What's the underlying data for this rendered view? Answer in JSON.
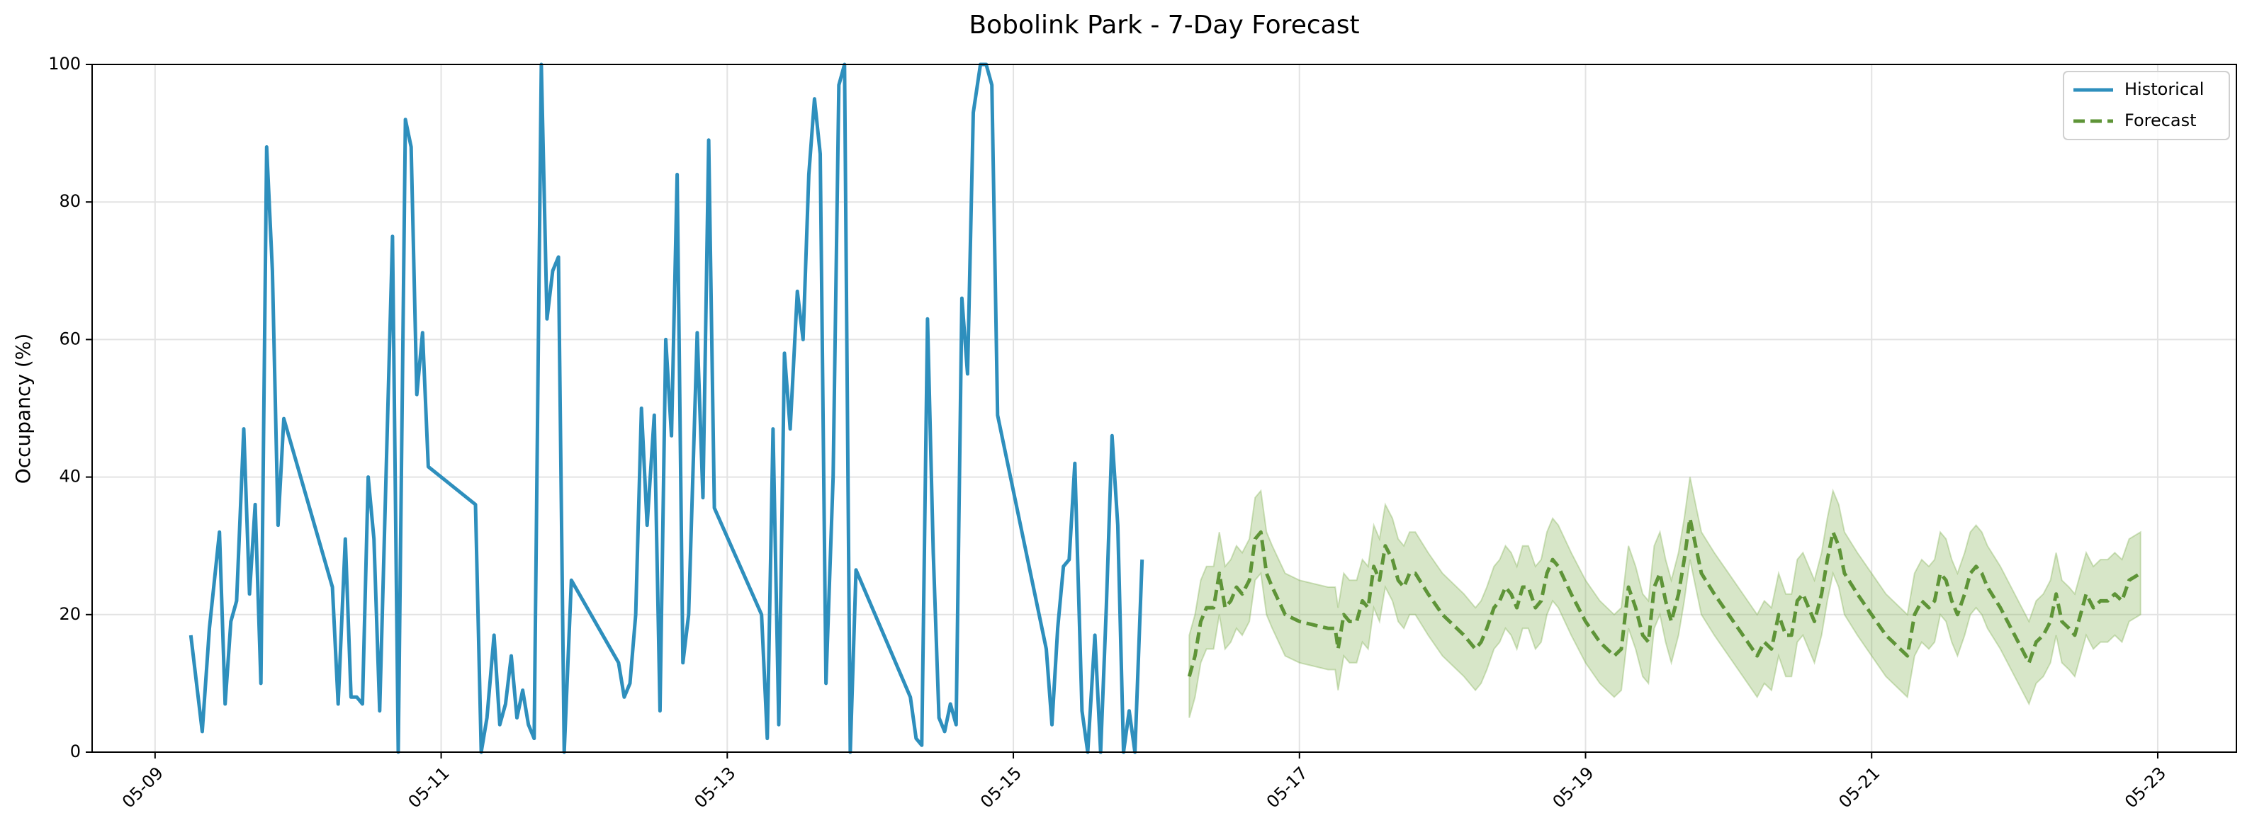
{
  "chart_data": {
    "type": "line",
    "title": "Bobolink Park - 7-Day Forecast",
    "ylabel": "Occupancy (%)",
    "xlim": [
      8.56,
      23.55
    ],
    "ylim": [
      0,
      100
    ],
    "xticks": [
      {
        "value": 9,
        "label": "05-09"
      },
      {
        "value": 11,
        "label": "05-11"
      },
      {
        "value": 13,
        "label": "05-13"
      },
      {
        "value": 15,
        "label": "05-15"
      },
      {
        "value": 17,
        "label": "05-17"
      },
      {
        "value": 19,
        "label": "05-19"
      },
      {
        "value": 21,
        "label": "05-21"
      },
      {
        "value": 23,
        "label": "05-23"
      }
    ],
    "yticks": [
      0,
      20,
      40,
      60,
      80,
      100
    ],
    "grid": true,
    "legend": "upper right",
    "series": [
      {
        "name": "Historical",
        "color": "#2e8fbd",
        "style": "solid",
        "x": [
          9.25,
          9.33,
          9.38,
          9.45,
          9.49,
          9.53,
          9.57,
          9.62,
          9.66,
          9.7,
          9.74,
          9.78,
          9.82,
          9.86,
          9.9,
          10.24,
          10.28,
          10.33,
          10.37,
          10.41,
          10.45,
          10.49,
          10.53,
          10.57,
          10.66,
          10.7,
          10.75,
          10.79,
          10.83,
          10.87,
          10.91,
          11.24,
          11.28,
          11.32,
          11.37,
          11.41,
          11.45,
          11.49,
          11.53,
          11.57,
          11.61,
          11.65,
          11.7,
          11.74,
          11.78,
          11.82,
          11.86,
          11.91,
          12.24,
          12.28,
          12.32,
          12.36,
          12.4,
          12.44,
          12.49,
          12.53,
          12.57,
          12.61,
          12.65,
          12.69,
          12.73,
          12.79,
          12.83,
          12.87,
          12.91,
          13.24,
          13.28,
          13.32,
          13.36,
          13.4,
          13.44,
          13.49,
          13.53,
          13.57,
          13.61,
          13.65,
          13.69,
          13.74,
          13.78,
          13.82,
          13.86,
          13.9,
          14.28,
          14.32,
          14.36,
          14.4,
          14.44,
          14.48,
          14.52,
          14.56,
          14.6,
          14.64,
          14.68,
          14.72,
          14.77,
          14.81,
          14.85,
          14.89,
          15.23,
          15.27,
          15.31,
          15.35,
          15.39,
          15.43,
          15.48,
          15.52,
          15.57,
          15.61,
          15.65,
          15.69,
          15.73,
          15.77,
          15.81,
          15.85,
          15.9
        ],
        "values": [
          17,
          3,
          18,
          32,
          7,
          19,
          22,
          47,
          23,
          36,
          10,
          88,
          70,
          33,
          48.5,
          24,
          7,
          31,
          8,
          8,
          7,
          40,
          31,
          6,
          75,
          0,
          92,
          88,
          52,
          61,
          41.5,
          36,
          0,
          5,
          17,
          4,
          7,
          14,
          5,
          9,
          4,
          2,
          100,
          63,
          70,
          72,
          0,
          25,
          13,
          8,
          10,
          20,
          50,
          33,
          49,
          6,
          60,
          46,
          84,
          13,
          20,
          61,
          37,
          89,
          35.5,
          20,
          2,
          47,
          4,
          58,
          47,
          67,
          60,
          84,
          95,
          87,
          10,
          40,
          97,
          100,
          0,
          26.5,
          8,
          2,
          1,
          63,
          29,
          5,
          3,
          7,
          4,
          66,
          55,
          93,
          100,
          100,
          97,
          49,
          15,
          4,
          18,
          27,
          28,
          42,
          6,
          0,
          17,
          0,
          21,
          46,
          33,
          0,
          6,
          0,
          28
        ]
      },
      {
        "name": "Forecast",
        "color": "#5e9437",
        "style": "dashed",
        "band_color": "#7aab4a",
        "x": [
          16.23,
          16.27,
          16.31,
          16.35,
          16.4,
          16.44,
          16.48,
          16.52,
          16.56,
          16.6,
          16.65,
          16.69,
          16.73,
          16.77,
          16.81,
          16.9,
          17.0,
          17.2,
          17.25,
          17.27,
          17.31,
          17.35,
          17.4,
          17.44,
          17.48,
          17.52,
          17.56,
          17.6,
          17.65,
          17.69,
          17.73,
          17.77,
          17.81,
          17.9,
          18.0,
          18.15,
          18.23,
          18.27,
          18.31,
          18.36,
          18.4,
          18.44,
          18.48,
          18.52,
          18.56,
          18.6,
          18.65,
          18.69,
          18.73,
          18.77,
          18.81,
          18.9,
          19.0,
          19.1,
          19.2,
          19.25,
          19.3,
          19.35,
          19.4,
          19.44,
          19.48,
          19.52,
          19.56,
          19.6,
          19.65,
          19.69,
          19.73,
          19.77,
          19.81,
          19.9,
          20.0,
          20.1,
          20.2,
          20.25,
          20.3,
          20.35,
          20.4,
          20.44,
          20.48,
          20.52,
          20.56,
          20.6,
          20.65,
          20.69,
          20.73,
          20.77,
          20.81,
          20.9,
          21.0,
          21.1,
          21.2,
          21.25,
          21.3,
          21.35,
          21.4,
          21.44,
          21.48,
          21.52,
          21.56,
          21.6,
          21.65,
          21.69,
          21.73,
          21.77,
          21.81,
          21.9,
          22.0,
          22.1,
          22.15,
          22.2,
          22.25,
          22.29,
          22.33,
          22.38,
          22.42,
          22.46,
          22.5,
          22.55,
          22.6,
          22.65,
          22.7,
          22.75,
          22.8,
          22.88
        ],
        "values": [
          11,
          14,
          19,
          21,
          21,
          26,
          21,
          22,
          24,
          23,
          25,
          31,
          32,
          26,
          24,
          20,
          19,
          18,
          18,
          15,
          20,
          19,
          19,
          22,
          21,
          27,
          25,
          30,
          28,
          25,
          24,
          26,
          26,
          23,
          20,
          17,
          15,
          16,
          18,
          21,
          22,
          24,
          23,
          21,
          24,
          24,
          21,
          22,
          26,
          28,
          27,
          23,
          19,
          16,
          14,
          15,
          24,
          21,
          17,
          16,
          24,
          26,
          22,
          19,
          23,
          28,
          34,
          30,
          26,
          23,
          20,
          17,
          14,
          16,
          15,
          20,
          17,
          17,
          22,
          23,
          21,
          19,
          23,
          28,
          32,
          30,
          26,
          23,
          20,
          17,
          15,
          14,
          20,
          22,
          21,
          22,
          26,
          25,
          22,
          20,
          23,
          26,
          27,
          26,
          24,
          21,
          17,
          13,
          16,
          17,
          19,
          23,
          19,
          18,
          17,
          20,
          23,
          21,
          22,
          22,
          23,
          22,
          25,
          26
        ],
        "lower": [
          5,
          8,
          13,
          15,
          15,
          20,
          15,
          16,
          18,
          17,
          19,
          25,
          26,
          20,
          18,
          14,
          13,
          12,
          12,
          9,
          14,
          13,
          13,
          16,
          15,
          21,
          19,
          24,
          22,
          19,
          18,
          20,
          20,
          17,
          14,
          11,
          9,
          10,
          12,
          15,
          16,
          18,
          17,
          15,
          18,
          18,
          15,
          16,
          20,
          22,
          21,
          17,
          13,
          10,
          8,
          9,
          18,
          15,
          11,
          10,
          18,
          20,
          16,
          13,
          17,
          22,
          28,
          24,
          20,
          17,
          14,
          11,
          8,
          10,
          9,
          14,
          11,
          11,
          16,
          17,
          15,
          13,
          17,
          22,
          26,
          24,
          20,
          17,
          14,
          11,
          9,
          8,
          14,
          16,
          15,
          16,
          20,
          19,
          16,
          14,
          17,
          20,
          21,
          20,
          18,
          15,
          11,
          7,
          10,
          11,
          13,
          17,
          13,
          12,
          11,
          14,
          17,
          15,
          16,
          16,
          17,
          16,
          19,
          20
        ],
        "upper": [
          17,
          20,
          25,
          27,
          27,
          32,
          27,
          28,
          30,
          29,
          31,
          37,
          38,
          32,
          30,
          26,
          25,
          24,
          24,
          21,
          26,
          25,
          25,
          28,
          27,
          33,
          31,
          36,
          34,
          31,
          30,
          32,
          32,
          29,
          26,
          23,
          21,
          22,
          24,
          27,
          28,
          30,
          29,
          27,
          30,
          30,
          27,
          28,
          32,
          34,
          33,
          29,
          25,
          22,
          20,
          21,
          30,
          27,
          23,
          22,
          30,
          32,
          28,
          25,
          29,
          34,
          40,
          36,
          32,
          29,
          26,
          23,
          20,
          22,
          21,
          26,
          23,
          23,
          28,
          29,
          27,
          25,
          29,
          34,
          38,
          36,
          32,
          29,
          26,
          23,
          21,
          20,
          26,
          28,
          27,
          28,
          32,
          31,
          28,
          26,
          29,
          32,
          33,
          32,
          30,
          27,
          23,
          19,
          22,
          23,
          25,
          29,
          25,
          24,
          23,
          26,
          29,
          27,
          28,
          28,
          29,
          28,
          31,
          32
        ]
      }
    ]
  }
}
